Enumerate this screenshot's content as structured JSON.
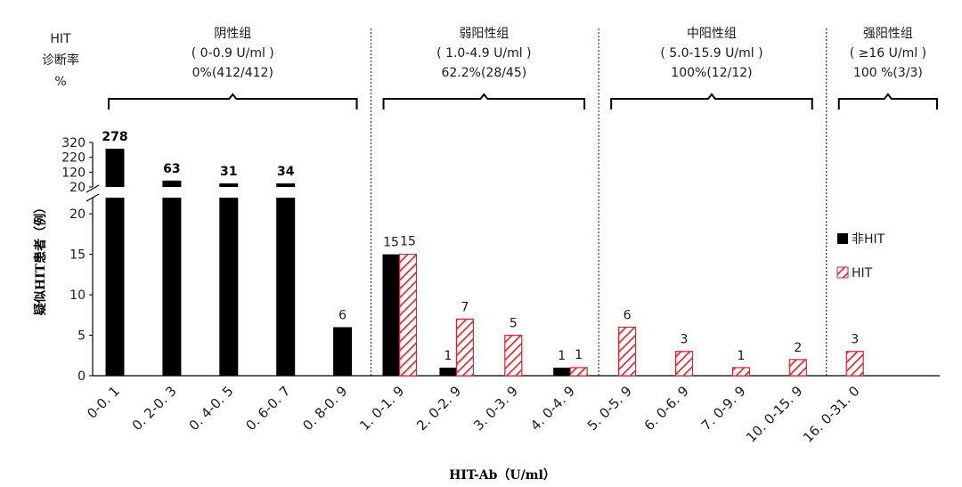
{
  "chart_data": {
    "type": "bar",
    "xlabel": "HIT-Ab（U/ml）",
    "ylabel": "疑似HIT患者（例）",
    "left_header": [
      "HIT",
      "诊断率",
      "%"
    ],
    "categories": [
      "0-0. 1",
      "0. 2-0. 3",
      "0. 4-0. 5",
      "0. 6-0. 7",
      "0. 8-0. 9",
      "1. 0-1. 9",
      "2. 0-2. 9",
      "3. 0-3. 9",
      "4. 0-4. 9",
      "5. 0-5. 9",
      "6. 0-6. 9",
      "7. 0-9. 9",
      "10. 0-15. 9",
      "16. 0-31. 0"
    ],
    "series": [
      {
        "name": "非HIT",
        "color": "#000000",
        "pattern": "solid",
        "values": [
          278,
          63,
          31,
          34,
          6,
          15,
          1,
          0,
          1,
          0,
          0,
          0,
          0,
          0
        ],
        "labels": [
          "278",
          "63",
          "31",
          "34",
          "6",
          "15",
          "1",
          "",
          "1",
          "",
          "",
          "",
          "",
          ""
        ]
      },
      {
        "name": "HIT",
        "color": "#e0202a",
        "pattern": "hatched",
        "values": [
          0,
          0,
          0,
          0,
          0,
          15,
          7,
          5,
          1,
          6,
          3,
          1,
          2,
          3
        ],
        "labels": [
          "",
          "",
          "",
          "",
          "",
          "15",
          "7",
          "5",
          "1",
          "6",
          "3",
          "1",
          "2",
          "3"
        ]
      }
    ],
    "y_axis": {
      "lower_ticks": [
        "0",
        "5",
        "10",
        "15",
        "20"
      ],
      "lower_range": [
        0,
        22
      ],
      "upper_ticks": [
        "20",
        "120",
        "220",
        "320"
      ],
      "upper_range": [
        20,
        320
      ],
      "broken": true
    },
    "groups": [
      {
        "name": "阴性组",
        "range": "( 0-0.9 U/ml )",
        "rate": "0%(412/412)",
        "from": 0,
        "to": 4
      },
      {
        "name": "弱阳性组",
        "range": "( 1.0-4.9 U/ml )",
        "rate": "62.2%(28/45)",
        "from": 5,
        "to": 8
      },
      {
        "name": "中阳性组",
        "range": "( 5.0-15.9 U/ml )",
        "rate": "100%(12/12)",
        "from": 9,
        "to": 12
      },
      {
        "name": "强阳性组",
        "range": "( ≥16 U/ml )",
        "rate": "100 %(3/3)",
        "from": 13,
        "to": 13
      }
    ],
    "legend": {
      "placement": "right",
      "items": [
        "非HIT",
        "HIT"
      ]
    }
  }
}
